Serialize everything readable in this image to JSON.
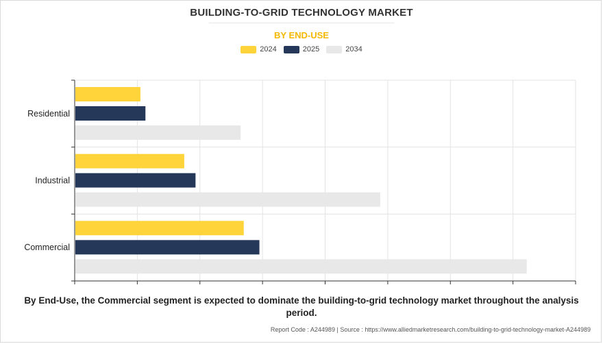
{
  "title": "BUILDING-TO-GRID TECHNOLOGY MARKET",
  "subtitle": "BY END-USE",
  "caption": "By End-Use, the Commercial segment is expected to dominate the building-to-grid technology market throughout the analysis period.",
  "footer": {
    "report_code": "Report Code : A244989",
    "separator": "|",
    "source": "Source : https://www.alliedmarketresearch.com/building-to-grid-technology-market-A244989"
  },
  "legend": [
    {
      "label": "2024",
      "color": "#ffd43b"
    },
    {
      "label": "2025",
      "color": "#263859"
    },
    {
      "label": "2034",
      "color": "#e8e8e8"
    }
  ],
  "chart_data": {
    "type": "bar",
    "orientation": "horizontal",
    "categories": [
      "Residential",
      "Industrial",
      "Commercial"
    ],
    "series": [
      {
        "name": "2024",
        "color": "#ffd43b",
        "values": [
          1.05,
          1.75,
          2.7
        ]
      },
      {
        "name": "2025",
        "color": "#263859",
        "values": [
          1.13,
          1.93,
          2.95
        ]
      },
      {
        "name": "2034",
        "color": "#e8e8e8",
        "values": [
          2.65,
          4.88,
          7.22
        ]
      }
    ],
    "xlim": [
      0,
      8
    ],
    "x_ticks": [
      0,
      1,
      2,
      3,
      4,
      5,
      6,
      7,
      8
    ],
    "tick_labels_shown": false,
    "grid": true
  }
}
